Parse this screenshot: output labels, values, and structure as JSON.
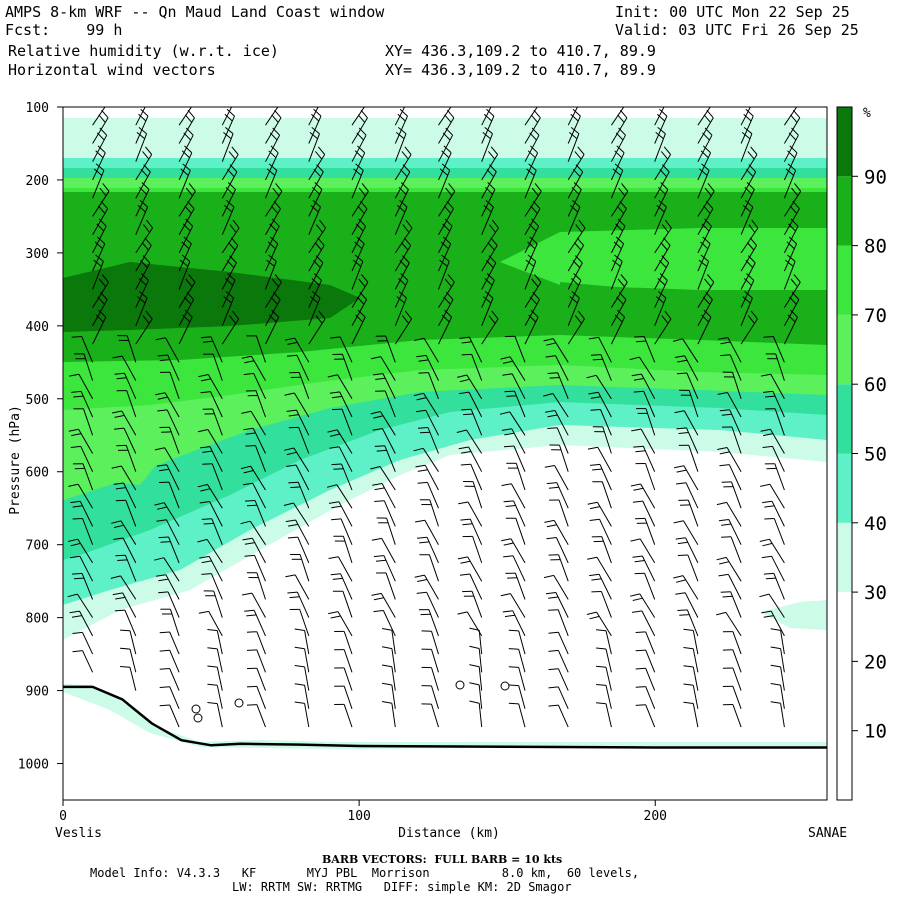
{
  "header": {
    "title": "AMPS 8-km WRF -- Qn Maud Land Coast window",
    "fcst": "Fcst:    99 h",
    "init": "Init: 00 UTC Mon 22 Sep 25",
    "valid": "Valid: 03 UTC Fri 26 Sep 25",
    "field1": "Relative humidity (w.r.t. ice)",
    "field1_xy": "XY= 436.3,109.2 to 410.7, 89.9",
    "field2": "Horizontal wind vectors",
    "field2_xy": "XY= 436.3,109.2 to 410.7, 89.9"
  },
  "footer": {
    "barb": "BARB VECTORS:  FULL BARB = 10 kts",
    "model_line1": "Model Info: V4.3.3   KF       MYJ PBL  Morrison          8.0 km,  60 levels,",
    "model_line2": "LW: RRTM SW: RRTMG   DIFF: simple KM: 2D Smagor"
  },
  "colors": {
    "rh_30": "#ccfbe8",
    "rh_40": "#5ef0c6",
    "rh_50": "#33df9c",
    "rh_60": "#5cf05c",
    "rh_70": "#3ce63c",
    "rh_80": "#1ab01a",
    "rh_90": "#0a780a",
    "ground": "#000000"
  },
  "chart_data": {
    "type": "heatmap",
    "xlabel": "Distance (km)",
    "ylabel": "Pressure (hPa)",
    "x_start_label": "Veslis",
    "x_end_label": "SANAE",
    "xlim": [
      0,
      258
    ],
    "ylim": [
      100,
      1050
    ],
    "y_scale": "linear-inverted",
    "x_ticks": [
      0,
      100,
      200
    ],
    "y_ticks": [
      100,
      200,
      300,
      400,
      500,
      600,
      700,
      800,
      900,
      1000
    ],
    "colorbar": {
      "unit": "%",
      "levels": [
        0,
        10,
        20,
        30,
        40,
        50,
        60,
        70,
        80,
        90,
        100
      ],
      "tick_labels": [
        "10",
        "20",
        "30",
        "40",
        "50",
        "60",
        "70",
        "80",
        "90"
      ]
    },
    "surface_pressure": [
      [
        0,
        895
      ],
      [
        10,
        895
      ],
      [
        20,
        912
      ],
      [
        30,
        945
      ],
      [
        40,
        968
      ],
      [
        50,
        975
      ],
      [
        60,
        973
      ],
      [
        80,
        974
      ],
      [
        100,
        976
      ],
      [
        150,
        977
      ],
      [
        200,
        978
      ],
      [
        258,
        978
      ]
    ],
    "wind_barbs": "columns roughly every 9 km, every 25 hPa, 10 kt full barbs"
  }
}
